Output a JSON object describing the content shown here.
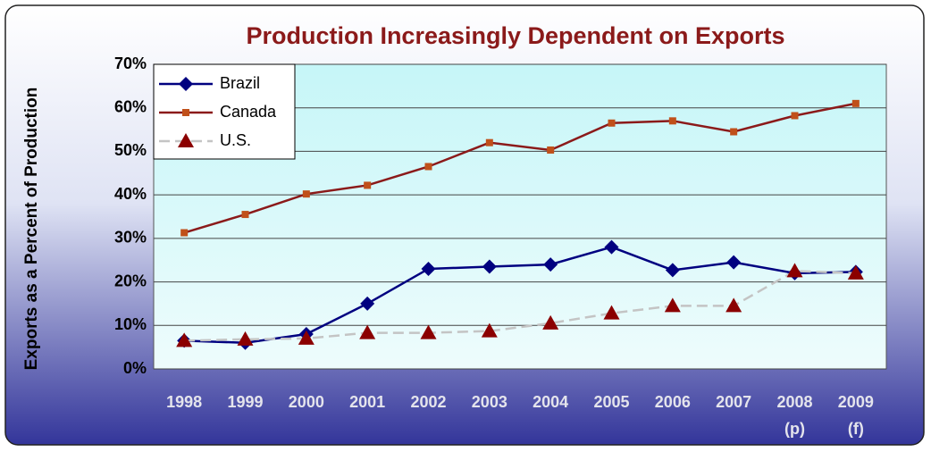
{
  "chart_data": {
    "type": "line",
    "title": "Production  Increasingly Dependent on Exports",
    "ylabel": "Exports as a Percent of Production",
    "categories": [
      "1998",
      "1999",
      "2000",
      "2001",
      "2002",
      "2003",
      "2004",
      "2005",
      "2006",
      "2007",
      "2008\n(p)",
      "2009\n(f)"
    ],
    "series": [
      {
        "name": "Brazil",
        "color": "#000080",
        "marker": "diamond",
        "values": [
          6.5,
          6,
          8,
          15,
          23,
          23.5,
          24,
          28,
          22.7,
          24.5,
          22,
          22.3
        ]
      },
      {
        "name": "Canada",
        "color": "#8b1a1a",
        "marker": "square",
        "marker_color": "#c0501a",
        "values": [
          31.3,
          35.5,
          40.2,
          42.2,
          46.5,
          52,
          50.3,
          56.5,
          57,
          54.5,
          58.2,
          61
        ]
      },
      {
        "name": "U.S.",
        "color": "#c4c4c4",
        "marker": "triangle",
        "marker_color": "#8b0000",
        "dash": true,
        "values": [
          6.5,
          6.8,
          7,
          8.3,
          8.3,
          8.7,
          10.5,
          12.8,
          14.5,
          14.5,
          22.5,
          22
        ]
      }
    ],
    "ylim": [
      0,
      70
    ],
    "yticks": [
      {
        "value": 0,
        "label": "0%"
      },
      {
        "value": 10,
        "label": "10%"
      },
      {
        "value": 20,
        "label": "20%"
      },
      {
        "value": 30,
        "label": "30%"
      },
      {
        "value": 40,
        "label": "40%"
      },
      {
        "value": 50,
        "label": "50%"
      },
      {
        "value": 60,
        "label": "60%"
      },
      {
        "value": 70,
        "label": "70%"
      }
    ],
    "grid": true,
    "legend": "top-left"
  }
}
